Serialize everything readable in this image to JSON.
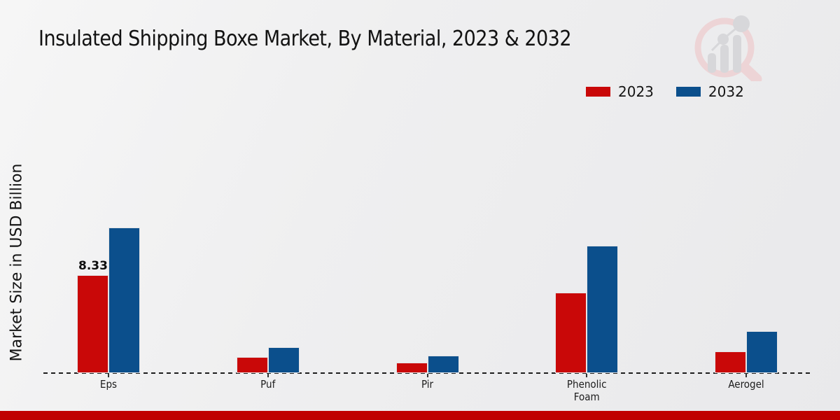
{
  "title": "Insulated Shipping Boxe Market, By Material, 2023 & 2032",
  "y_axis_label": "Market Size in USD Billion",
  "watermark_icon": "market-research-future-magnifier-bar-chart-logo",
  "footer": {
    "accent_color": "#c00000"
  },
  "colors": {
    "series_2023": "#c90808",
    "series_2032": "#0b4f8c",
    "background": "#efeff0",
    "text": "#141414"
  },
  "chart_data": {
    "type": "bar",
    "title": "Insulated Shipping Boxe Market, By Material, 2023 & 2032",
    "ylabel": "Market Size in USD Billion",
    "xlabel": "",
    "categories": [
      "Eps",
      "Puf",
      "Pir",
      "Phenolic Foam",
      "Aerogel"
    ],
    "series": [
      {
        "name": "2023",
        "color": "#c90808",
        "values": [
          8.33,
          1.37,
          0.89,
          6.84,
          1.85
        ]
      },
      {
        "name": "2032",
        "color": "#0b4f8c",
        "values": [
          12.38,
          2.2,
          1.49,
          10.83,
          3.57
        ]
      }
    ],
    "annotations": [
      {
        "series": "2023",
        "category": "Eps",
        "text": "8.33"
      }
    ],
    "unit": "USD Billion",
    "ylim": [
      0,
      13
    ],
    "grid": false,
    "baseline_style": "dashed",
    "legend_position": "top-right"
  }
}
